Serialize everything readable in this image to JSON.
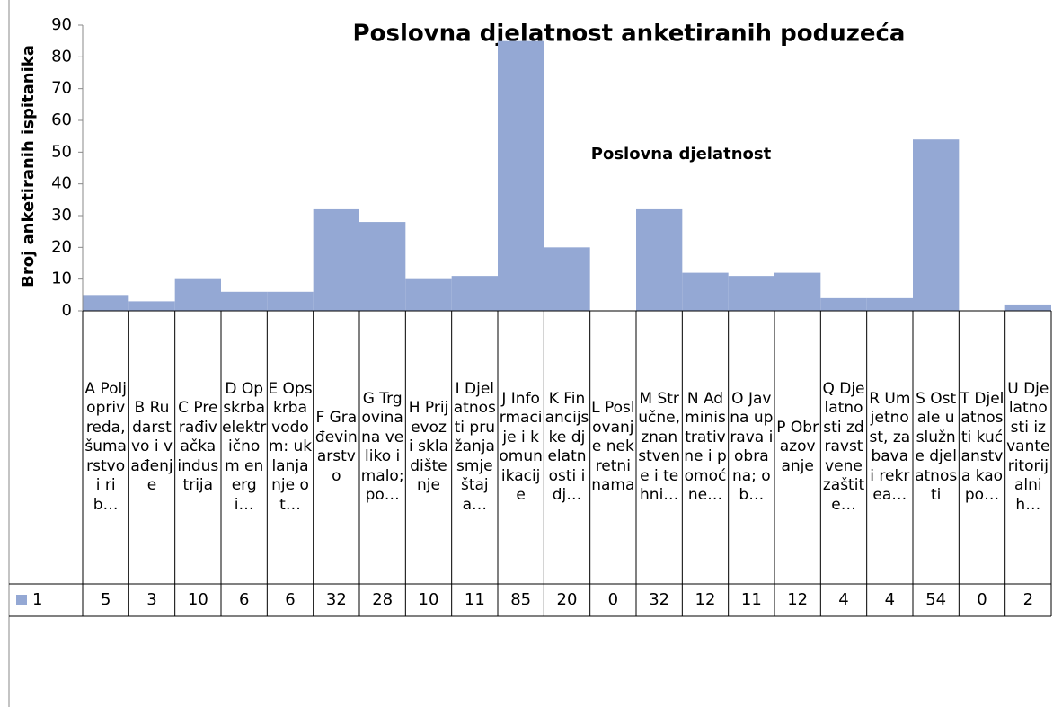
{
  "chart_data": {
    "type": "bar",
    "title": "Poslovna djelatnost anketiranih poduzeća",
    "x_label": "Poslovna djelatnost",
    "y_label": "Broj anketiranih ispitanika",
    "categories": [
      "A Poljoprivreda, šumarstvo i rib…",
      "B Rudarstvo i vađenje",
      "C Prerađivačka industrija",
      "D Opskrba električnom energi…",
      "E Opskrba vodom: uklanjanje ot…",
      "F Građevinarstvo",
      "G Trgovina na veliko i malo; po…",
      "H Prijevoz i skladištenje",
      "I Djelatnosti pružanja smještaja…",
      "J Informacije i komunikacije",
      "K Financijske djelatnosti i dj…",
      "L Poslovanje nekretninama",
      "M Stručne, znanstvene i tehni…",
      "N Administrativne i pomoćne…",
      "O Javna uprava i obrana; ob…",
      "P Obrazovanje",
      "Q Djelatnosti zdravstvene zaštite…",
      "R Umjetnost, zabava i rekrea…",
      "S Ostale uslužne djelatnosti",
      "T Djelatnosti kućanstva kao po…",
      "U Djelatnosti izvanteritorijalnih…"
    ],
    "series": [
      {
        "name": "1",
        "color": "#94a8d4",
        "values": [
          5,
          3,
          10,
          6,
          6,
          32,
          28,
          10,
          11,
          85,
          20,
          0,
          32,
          12,
          11,
          12,
          4,
          4,
          54,
          0,
          2
        ]
      }
    ],
    "ylim": [
      0,
      90
    ],
    "yticks": [
      0,
      10,
      20,
      30,
      40,
      50,
      60,
      70,
      80,
      90
    ],
    "grid": false,
    "data_table": true
  }
}
